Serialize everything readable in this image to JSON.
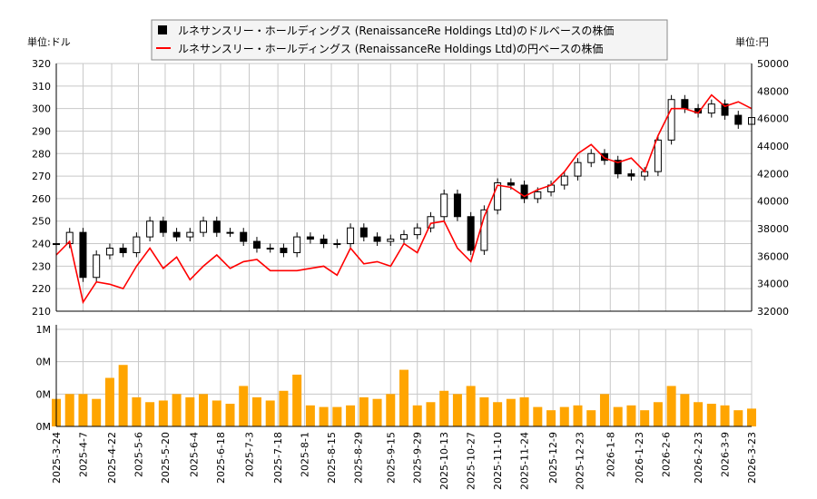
{
  "chart_data": {
    "type": "candlestick+line+bar",
    "legend": {
      "placement": "top-center",
      "entries": [
        {
          "label": "ルネサンスリー・ホールディングス (RenaissanceRe Holdings Ltd)のドルベースの株価",
          "color": "#000000"
        },
        {
          "label": "ルネサンスリー・ホールディングス (RenaissanceRe Holdings Ltd)の円ベースの株価",
          "color": "#ff0000"
        }
      ]
    },
    "left_unit": "単位:ドル",
    "right_unit": "単位:円",
    "y_left": {
      "range": [
        210,
        320
      ],
      "ticks": [
        210,
        220,
        230,
        240,
        250,
        260,
        270,
        280,
        290,
        300,
        310,
        320
      ]
    },
    "y_right": {
      "range": [
        32000,
        50000
      ],
      "ticks": [
        32000,
        34000,
        36000,
        38000,
        40000,
        42000,
        44000,
        46000,
        48000,
        50000
      ]
    },
    "volume_axis": {
      "range": [
        0,
        0.6
      ],
      "ticks": [
        0,
        0.2,
        0.4,
        0.6
      ],
      "tick_labels": [
        "0M",
        "0M",
        "0M",
        "1M"
      ]
    },
    "x_ticks": [
      "2025-3-24",
      "2025-4-7",
      "2025-4-22",
      "2025-5-6",
      "2025-5-20",
      "2025-6-4",
      "2025-6-18",
      "2025-7-3",
      "2025-7-18",
      "2025-8-1",
      "2025-8-15",
      "2025-8-29",
      "2025-9-15",
      "2025-9-29",
      "2025-10-13",
      "2025-10-27",
      "2025-11-10",
      "2025-11-24",
      "2025-12-9",
      "2025-12-23",
      "2026-1-8",
      "2026-1-23",
      "2026-2-6",
      "2026-2-23",
      "2026-3-9",
      "2026-3-23"
    ],
    "grid": true,
    "colors": {
      "up_body": "#ffffff",
      "down_body": "#000000",
      "yen_line": "#ff0000",
      "volume": "#ffa500",
      "grid": "#c8c8c8"
    },
    "start_date": "2025-03-24",
    "series_interval": "weekly",
    "usd_close": [
      240,
      245,
      225,
      235,
      238,
      236,
      243,
      250,
      245,
      243,
      245,
      250,
      245,
      245,
      241,
      238,
      238,
      236,
      243,
      242,
      240,
      240,
      247,
      243,
      241,
      242,
      244,
      247,
      252,
      262,
      252,
      237,
      255,
      267,
      266,
      260,
      263,
      266,
      270,
      276,
      280,
      277,
      271,
      270,
      272,
      286,
      304,
      300,
      298,
      302,
      297,
      293,
      296
    ],
    "jpy_close": [
      36090,
      37070,
      32650,
      34130,
      33960,
      33640,
      35270,
      36580,
      35110,
      35930,
      34290,
      35270,
      36090,
      35110,
      35600,
      35760,
      34950,
      34950,
      34950,
      35110,
      35270,
      34620,
      36580,
      35440,
      35600,
      35270,
      36910,
      36250,
      38380,
      38540,
      36580,
      35600,
      38870,
      41160,
      41000,
      40340,
      40830,
      41160,
      42140,
      43450,
      44110,
      43130,
      42800,
      43130,
      42140,
      44760,
      46720,
      46720,
      46400,
      47710,
      46890,
      47220,
      46720
    ],
    "volume_m": [
      0.17,
      0.2,
      0.2,
      0.17,
      0.3,
      0.38,
      0.18,
      0.15,
      0.16,
      0.2,
      0.18,
      0.2,
      0.16,
      0.14,
      0.25,
      0.18,
      0.16,
      0.22,
      0.32,
      0.13,
      0.12,
      0.12,
      0.13,
      0.18,
      0.17,
      0.2,
      0.35,
      0.13,
      0.15,
      0.22,
      0.2,
      0.25,
      0.18,
      0.15,
      0.17,
      0.18,
      0.12,
      0.1,
      0.12,
      0.13,
      0.1,
      0.2,
      0.12,
      0.13,
      0.1,
      0.15,
      0.25,
      0.2,
      0.15,
      0.14,
      0.13,
      0.1,
      0.11
    ]
  }
}
